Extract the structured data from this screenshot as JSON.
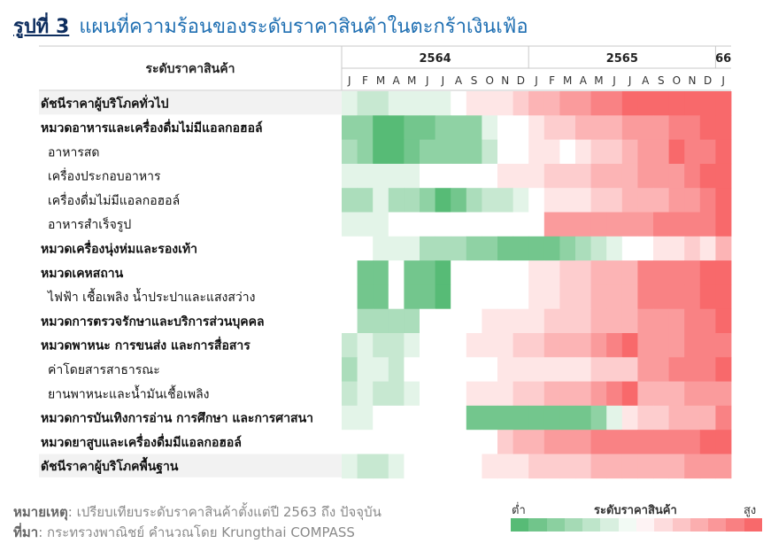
{
  "figure": {
    "label": "รูปที่ 3",
    "title": "แผนที่ความร้อนของระดับราคาสินค้าในตะกร้าเงินเฟ้อ"
  },
  "chart_data": {
    "type": "heatmap",
    "row_header": "ระดับราคาสินค้า",
    "years": [
      {
        "label": "2564",
        "span": 12
      },
      {
        "label": "2565",
        "span": 12
      },
      {
        "label": "66",
        "span": 1
      }
    ],
    "months": [
      "J",
      "F",
      "M",
      "A",
      "M",
      "J",
      "J",
      "A",
      "S",
      "O",
      "N",
      "D",
      "J",
      "F",
      "M",
      "A",
      "M",
      "J",
      "J",
      "A",
      "S",
      "O",
      "N",
      "D",
      "J"
    ],
    "rows": [
      {
        "label": "ดัชนีราคาผู้บริโภคทั่วไป",
        "bold": true,
        "shaded": true,
        "values": [
          -1,
          -2,
          -2,
          -1,
          -1,
          -1,
          -1,
          0,
          1,
          1,
          1,
          2,
          3,
          3,
          4,
          4,
          5,
          5,
          6,
          6,
          6,
          6,
          6,
          6,
          6
        ]
      },
      {
        "label": "หมวดอาหารและเครื่องดื่มไม่มีแอลกอฮอล์",
        "bold": true,
        "shaded": false,
        "values": [
          -4,
          -4,
          -6,
          -6,
          -5,
          -5,
          -4,
          -4,
          -4,
          -1,
          0,
          0,
          1,
          2,
          2,
          3,
          3,
          3,
          4,
          4,
          4,
          5,
          5,
          6,
          6
        ]
      },
      {
        "label": "อาหารสด",
        "bold": false,
        "shaded": false,
        "values": [
          -3,
          -4,
          -6,
          -6,
          -5,
          -4,
          -4,
          -4,
          -4,
          -2,
          0,
          0,
          1,
          1,
          0,
          1,
          2,
          2,
          3,
          4,
          4,
          6,
          5,
          5,
          6
        ]
      },
      {
        "label": "เครื่องประกอบอาหาร",
        "bold": false,
        "shaded": false,
        "values": [
          -1,
          -1,
          -1,
          -1,
          -1,
          0,
          0,
          0,
          0,
          0,
          1,
          1,
          1,
          2,
          2,
          2,
          3,
          3,
          3,
          4,
          4,
          4,
          5,
          6,
          6
        ]
      },
      {
        "label": "เครื่องดื่มไม่มีแอลกอฮอล์",
        "bold": false,
        "shaded": false,
        "values": [
          -3,
          -3,
          -1,
          -3,
          -3,
          -4,
          -6,
          -5,
          -3,
          -2,
          -2,
          -1,
          0,
          1,
          1,
          1,
          2,
          2,
          3,
          3,
          3,
          4,
          4,
          5,
          6
        ]
      },
      {
        "label": "อาหารสำเร็จรูป",
        "bold": false,
        "shaded": false,
        "values": [
          -1,
          -1,
          -1,
          0,
          0,
          0,
          0,
          0,
          0,
          0,
          0,
          0,
          0,
          4,
          4,
          4,
          4,
          4,
          4,
          4,
          5,
          5,
          5,
          5,
          6
        ]
      },
      {
        "label": "หมวดเครื่องนุ่งห่มและรองเท้า",
        "bold": true,
        "shaded": false,
        "values": [
          0,
          0,
          -1,
          -1,
          -1,
          -3,
          -3,
          -3,
          -4,
          -4,
          -5,
          -5,
          -5,
          -5,
          -4,
          -3,
          -2,
          -1,
          0,
          0,
          1,
          1,
          2,
          1,
          3
        ]
      },
      {
        "label": "หมวดเคหสถาน",
        "bold": true,
        "shaded": false,
        "values": [
          0,
          -5,
          -5,
          0,
          -5,
          -5,
          -6,
          0,
          0,
          0,
          0,
          0,
          1,
          1,
          2,
          2,
          3,
          3,
          3,
          5,
          5,
          5,
          5,
          6,
          6
        ]
      },
      {
        "label": "ไฟฟ้า เชื้อเพลิง น้ำประปาและแสงสว่าง",
        "bold": false,
        "shaded": false,
        "values": [
          0,
          -5,
          -5,
          0,
          -5,
          -5,
          -6,
          0,
          0,
          0,
          0,
          0,
          1,
          1,
          2,
          2,
          3,
          3,
          3,
          5,
          5,
          5,
          5,
          6,
          6
        ]
      },
      {
        "label": "หมวดการตรวจรักษาและบริการส่วนบุคคล",
        "bold": true,
        "shaded": false,
        "values": [
          0,
          -3,
          -3,
          -3,
          -3,
          0,
          0,
          0,
          0,
          1,
          1,
          1,
          1,
          2,
          2,
          2,
          3,
          3,
          3,
          4,
          4,
          4,
          5,
          5,
          6
        ]
      },
      {
        "label": "หมวดพาหนะ การขนส่ง และการสื่อสาร",
        "bold": true,
        "shaded": false,
        "values": [
          -2,
          -1,
          -2,
          -2,
          -1,
          0,
          0,
          0,
          1,
          1,
          1,
          2,
          2,
          3,
          3,
          3,
          4,
          5,
          6,
          4,
          4,
          4,
          5,
          5,
          5
        ]
      },
      {
        "label": "ค่าโดยสารสาธารณะ",
        "bold": false,
        "shaded": false,
        "values": [
          -3,
          -1,
          -1,
          -2,
          0,
          0,
          0,
          0,
          0,
          0,
          1,
          1,
          1,
          1,
          1,
          1,
          2,
          2,
          2,
          4,
          4,
          5,
          5,
          5,
          6
        ]
      },
      {
        "label": "ยานพาหนะและน้ำมันเชื้อเพลิง",
        "bold": false,
        "shaded": false,
        "values": [
          -2,
          -1,
          -2,
          -2,
          -1,
          0,
          0,
          0,
          1,
          1,
          1,
          2,
          2,
          3,
          3,
          3,
          4,
          5,
          6,
          3,
          3,
          3,
          4,
          4,
          4
        ]
      },
      {
        "label": "หมวดการบันเทิงการอ่าน การศึกษา และการศาสนา",
        "bold": true,
        "shaded": false,
        "values": [
          -1,
          -1,
          0,
          0,
          0,
          0,
          0,
          0,
          -5,
          -5,
          -5,
          -5,
          -5,
          -5,
          -5,
          -5,
          -4,
          -1,
          1,
          2,
          2,
          3,
          3,
          3,
          5
        ]
      },
      {
        "label": "หมวดยาสูบและเครื่องดื่มมีแอลกอฮอล์",
        "bold": true,
        "shaded": false,
        "values": [
          0,
          0,
          0,
          0,
          0,
          0,
          0,
          0,
          0,
          0,
          2,
          3,
          3,
          4,
          4,
          4,
          5,
          5,
          5,
          5,
          5,
          5,
          5,
          6,
          6
        ]
      },
      {
        "label": "ดัชนีราคาผู้บริโภคพื้นฐาน",
        "bold": true,
        "shaded": true,
        "values": [
          -1,
          -2,
          -2,
          -1,
          0,
          0,
          0,
          0,
          0,
          1,
          1,
          1,
          2,
          2,
          2,
          2,
          3,
          3,
          3,
          3,
          3,
          3,
          4,
          4,
          4
        ]
      }
    ],
    "legend": {
      "low": "ต่ำ",
      "title": "ระดับราคาสินค้า",
      "high": "สูง"
    },
    "colors": {
      "low_dark": "#57bb76",
      "neutral": "#ffffff",
      "high_dark": "#f8696b",
      "header_line": "#c9c9c9",
      "row_shade": "#f2f2f2"
    }
  },
  "footer": {
    "note_label": "หมายเหตุ",
    "note_text": ": เปรียบเทียบระดับราคาสินค้าตั้งแต่ปี 2563 ถึง ปัจจุบัน",
    "source_label": "ที่มา",
    "source_text": ": กระทรวงพาณิชย์ คำนวณโดย Krungthai COMPASS"
  }
}
